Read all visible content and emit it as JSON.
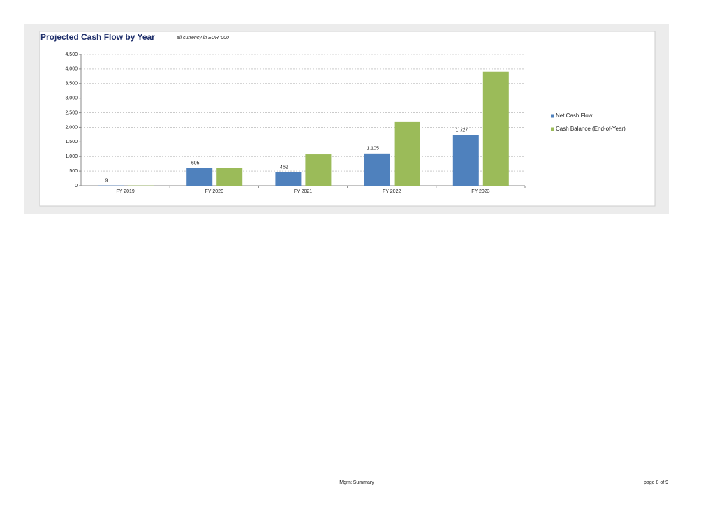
{
  "chart_data": {
    "type": "bar",
    "title": "Projected Cash Flow by Year",
    "subtitle": "all currency in EUR '000",
    "categories": [
      "FY 2019",
      "FY 2020",
      "FY 2021",
      "FY 2022",
      "FY 2023"
    ],
    "series": [
      {
        "name": "Net Cash Flow",
        "color": "#4f81bd",
        "values": [
          9,
          605,
          462,
          1105,
          1727
        ],
        "value_labels": [
          "9",
          "605",
          "462",
          "1.105",
          "1.727"
        ]
      },
      {
        "name": "Cash Balance (End-of-Year)",
        "color": "#9bbb59",
        "values": [
          9,
          614,
          1076,
          2181,
          3908
        ]
      }
    ],
    "ylim": [
      0,
      4500
    ],
    "yticks": [
      0,
      500,
      {
        "value": 1000,
        "label": "1.000"
      },
      {
        "value": 1500,
        "label": "1.500"
      },
      {
        "value": 2000,
        "label": "2.000"
      },
      {
        "value": 2500,
        "label": "2.500"
      },
      {
        "value": 3000,
        "label": "3.000"
      },
      {
        "value": 3500,
        "label": "3.500"
      },
      {
        "value": 4000,
        "label": "4.000"
      },
      {
        "value": 4500,
        "label": "4.500"
      }
    ],
    "grid": true,
    "legend": "right"
  },
  "footer": {
    "center": "Mgmt Summary",
    "page": "page 8 of 9"
  }
}
